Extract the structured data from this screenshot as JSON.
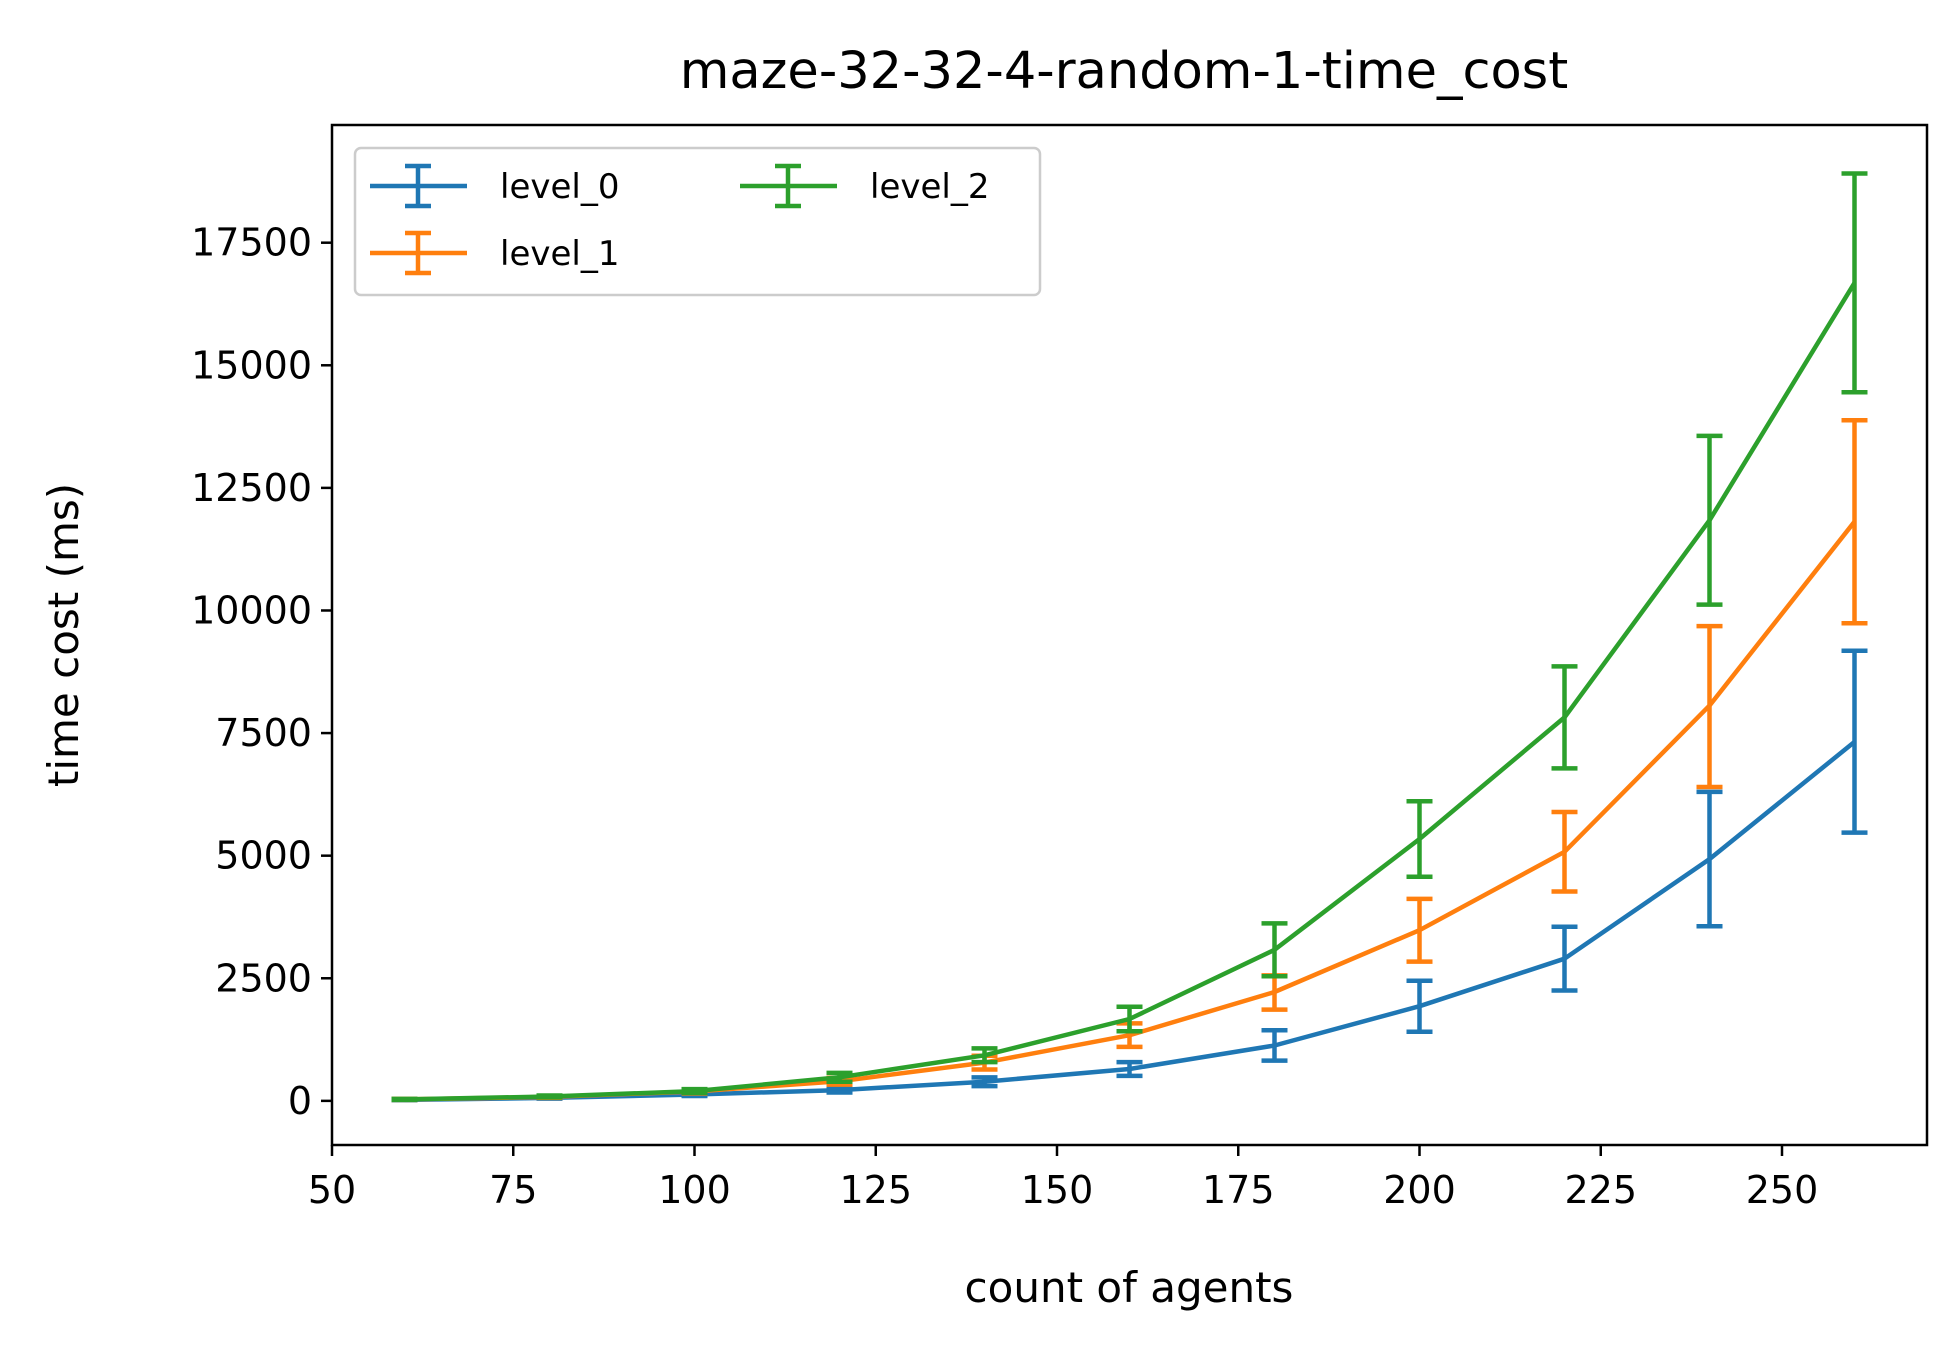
{
  "chart_data": {
    "type": "line",
    "title": "maze-32-32-4-random-1-time_cost",
    "xlabel": "count of agents",
    "ylabel": "time cost (ms)",
    "xlim": [
      50,
      270
    ],
    "ylim": [
      -900,
      19900
    ],
    "xticks": [
      "50",
      "75",
      "100",
      "125",
      "150",
      "175",
      "200",
      "225",
      "250"
    ],
    "yticks": [
      "0",
      "2500",
      "5000",
      "7500",
      "10000",
      "12500",
      "15000",
      "17500"
    ],
    "grid": false,
    "legend": {
      "placement": "top-left",
      "columns": 2
    },
    "x": [
      60,
      80,
      100,
      120,
      140,
      160,
      180,
      200,
      220,
      240,
      260
    ],
    "series": [
      {
        "name": "level_0",
        "color": "#1f77b4",
        "values": [
          20,
          60,
          130,
          220,
          390,
          650,
          1130,
          1930,
          2900,
          4930,
          7320
        ],
        "error_lower": [
          15,
          45,
          100,
          170,
          300,
          510,
          820,
          1410,
          2250,
          3560,
          5470
        ],
        "error_upper": [
          25,
          75,
          160,
          280,
          480,
          790,
          1440,
          2450,
          3550,
          6300,
          9180
        ]
      },
      {
        "name": "level_1",
        "color": "#ff7f0e",
        "values": [
          30,
          80,
          190,
          400,
          780,
          1340,
          2220,
          3480,
          5080,
          8060,
          11810
        ],
        "error_lower": [
          20,
          60,
          150,
          330,
          640,
          1100,
          1860,
          2840,
          4270,
          6400,
          9740
        ],
        "error_upper": [
          40,
          100,
          230,
          470,
          920,
          1580,
          2560,
          4120,
          5890,
          9680,
          13880
        ]
      },
      {
        "name": "level_2",
        "color": "#2ca02c",
        "values": [
          30,
          90,
          200,
          480,
          930,
          1670,
          3080,
          5340,
          7820,
          11840,
          16680
        ],
        "error_lower": [
          20,
          70,
          160,
          390,
          790,
          1420,
          2540,
          4570,
          6780,
          10120,
          14450
        ],
        "error_upper": [
          40,
          110,
          240,
          570,
          1070,
          1920,
          3620,
          6110,
          8860,
          13560,
          18910
        ]
      }
    ]
  }
}
